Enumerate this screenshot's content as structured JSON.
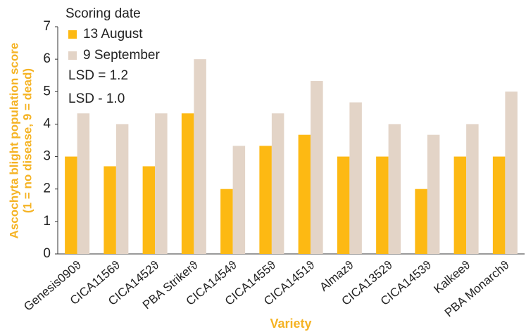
{
  "chart_data": {
    "type": "bar",
    "x_label": "Variety",
    "y_label": [
      "Ascochyta blight population score",
      "(1 = no disease, 9 = dead)"
    ],
    "legend_title": "Scoring date",
    "legend": "top-left",
    "annotations": [
      "LSD = 1.2",
      "LSD - 1.0"
    ],
    "categories": [
      "Genesis090ϑ",
      "CICA1156ϑ",
      "CICA1452ϑ",
      "PBA Strikerϑ",
      "CICA1454ϑ",
      "CICA1455ϑ",
      "CICA1451ϑ",
      "Almazϑ",
      "CICA1352ϑ",
      "CICA1453ϑ",
      "Kalkeeϑ",
      "PBA Monarchϑ"
    ],
    "series": [
      {
        "name": "13 August",
        "color": "#fdb913",
        "values": [
          3,
          2.7,
          2.7,
          4.33,
          2,
          3.33,
          3.67,
          3,
          3,
          2,
          3,
          3
        ]
      },
      {
        "name": "9 September",
        "color": "#e3d4c7",
        "values": [
          4.33,
          4,
          4.33,
          6,
          3.33,
          4.33,
          5.33,
          4.67,
          4,
          3.67,
          4,
          5
        ]
      }
    ],
    "ylim": [
      0,
      7
    ],
    "yticks": [
      0,
      1,
      2,
      3,
      4,
      5,
      6,
      7
    ],
    "grid": false
  }
}
